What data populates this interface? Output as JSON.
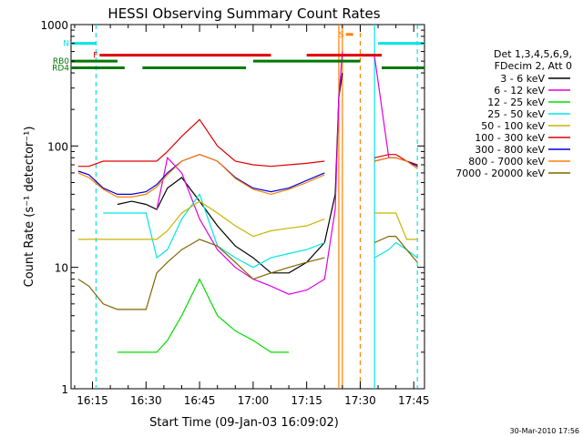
{
  "chart_data": {
    "type": "line",
    "title": "HESSI Observing Summary Count Rates",
    "xlabel": "Start Time (09-Jan-03 16:09:02)",
    "ylabel": "Count Rate (s⁻¹ detector⁻¹)",
    "y_scale": "log",
    "ylim": [
      1,
      1000
    ],
    "xlim": [
      "16:09",
      "17:48"
    ],
    "x_ticks": [
      "16:15",
      "16:30",
      "16:45",
      "17:00",
      "17:15",
      "17:30",
      "17:45"
    ],
    "y_ticks": [
      "1",
      "10",
      "100",
      "1000"
    ],
    "footer": "30-Mar-2010 17:56",
    "grid": false,
    "legend_header": [
      "Det 1,3,4,5,6,9,",
      "FDecim 2, Att 0"
    ],
    "legend_position": "right",
    "series": [
      {
        "name": "3 - 6 keV",
        "color": "#000000",
        "x": [
          "16:11",
          "16:14",
          "16:18",
          "16:22",
          "16:26",
          "16:30",
          "16:33",
          "16:36",
          "16:40",
          "16:45",
          "16:50",
          "16:55",
          "17:00",
          "17:05",
          "17:10",
          "17:15",
          "17:20",
          "17:23",
          "17:24",
          "17:25",
          "17:26",
          "17:27",
          "17:34",
          "17:38",
          "17:40",
          "17:43",
          "17:46"
        ],
        "y": [
          null,
          null,
          null,
          33,
          35,
          33,
          30,
          45,
          55,
          35,
          22,
          15,
          12,
          9,
          9,
          11,
          16,
          40,
          250,
          400,
          null,
          null,
          null,
          null,
          null,
          null,
          null
        ]
      },
      {
        "name": "6 - 12 keV",
        "color": "#e000e0",
        "x": [
          "16:11",
          "16:14",
          "16:18",
          "16:22",
          "16:26",
          "16:30",
          "16:33",
          "16:36",
          "16:40",
          "16:45",
          "16:50",
          "16:55",
          "17:00",
          "17:05",
          "17:10",
          "17:15",
          "17:20",
          "17:23",
          "17:24",
          "17:25",
          "17:26",
          "17:27",
          "17:34",
          "17:38",
          "17:40",
          "17:43",
          "17:46"
        ],
        "y": [
          null,
          null,
          null,
          null,
          null,
          null,
          30,
          80,
          60,
          25,
          14,
          10,
          8,
          7,
          6,
          6.5,
          8,
          30,
          250,
          600,
          null,
          null,
          550,
          80,
          null,
          null,
          null
        ]
      },
      {
        "name": "12 - 25 keV",
        "color": "#00dd00",
        "x": [
          "16:11",
          "16:14",
          "16:18",
          "16:22",
          "16:26",
          "16:30",
          "16:33",
          "16:36",
          "16:40",
          "16:45",
          "16:50",
          "16:55",
          "17:00",
          "17:05",
          "17:10",
          "17:15",
          "17:20",
          "17:23",
          "17:24",
          "17:25",
          "17:26",
          "17:27",
          "17:34",
          "17:38",
          "17:40",
          "17:43",
          "17:46"
        ],
        "y": [
          null,
          null,
          null,
          2,
          2,
          2,
          2,
          2.5,
          4,
          8,
          4,
          3,
          2.5,
          2,
          2,
          null,
          null,
          null,
          null,
          null,
          null,
          null,
          null,
          null,
          null,
          null,
          null
        ]
      },
      {
        "name": "25 - 50 keV",
        "color": "#00e5e5",
        "x": [
          "16:11",
          "16:14",
          "16:18",
          "16:22",
          "16:26",
          "16:30",
          "16:33",
          "16:36",
          "16:40",
          "16:45",
          "16:50",
          "16:55",
          "17:00",
          "17:05",
          "17:10",
          "17:15",
          "17:20",
          "17:23",
          "17:24",
          "17:25",
          "17:26",
          "17:27",
          "17:34",
          "17:38",
          "17:40",
          "17:43",
          "17:46"
        ],
        "y": [
          null,
          null,
          28,
          28,
          28,
          28,
          12,
          14,
          25,
          40,
          15,
          12,
          10,
          12,
          13,
          14,
          16,
          null,
          null,
          null,
          null,
          null,
          12,
          14,
          16,
          14,
          12
        ]
      },
      {
        "name": "50 - 100 keV",
        "color": "#c8b400",
        "x": [
          "16:11",
          "16:14",
          "16:18",
          "16:22",
          "16:26",
          "16:30",
          "16:33",
          "16:36",
          "16:40",
          "16:45",
          "16:50",
          "16:55",
          "17:00",
          "17:05",
          "17:10",
          "17:15",
          "17:20",
          "17:23",
          "17:24",
          "17:25",
          "17:26",
          "17:27",
          "17:34",
          "17:38",
          "17:40",
          "17:43",
          "17:46"
        ],
        "y": [
          17,
          17,
          17,
          17,
          17,
          17,
          17,
          20,
          28,
          35,
          28,
          22,
          18,
          20,
          21,
          22,
          25,
          null,
          null,
          null,
          null,
          null,
          28,
          28,
          28,
          17,
          17
        ]
      },
      {
        "name": "100 - 300 keV",
        "color": "#e00000",
        "x": [
          "16:11",
          "16:14",
          "16:18",
          "16:22",
          "16:26",
          "16:30",
          "16:33",
          "16:36",
          "16:40",
          "16:45",
          "16:50",
          "16:55",
          "17:00",
          "17:05",
          "17:10",
          "17:15",
          "17:20",
          "17:23",
          "17:24",
          "17:25",
          "17:26",
          "17:27",
          "17:34",
          "17:38",
          "17:40",
          "17:43",
          "17:46"
        ],
        "y": [
          68,
          68,
          75,
          75,
          75,
          75,
          75,
          90,
          120,
          165,
          100,
          75,
          70,
          68,
          70,
          72,
          75,
          null,
          null,
          null,
          null,
          null,
          80,
          85,
          85,
          75,
          70
        ]
      },
      {
        "name": "300 - 800 keV",
        "color": "#0000dd",
        "x": [
          "16:11",
          "16:14",
          "16:18",
          "16:22",
          "16:26",
          "16:30",
          "16:33",
          "16:36",
          "16:40",
          "16:45",
          "16:50",
          "16:55",
          "17:00",
          "17:05",
          "17:10",
          "17:15",
          "17:20",
          "17:23",
          "17:24",
          "17:25",
          "17:26",
          "17:27",
          "17:34",
          "17:38",
          "17:40",
          "17:43",
          "17:46"
        ],
        "y": [
          62,
          58,
          45,
          40,
          40,
          42,
          48,
          60,
          75,
          85,
          75,
          55,
          45,
          42,
          45,
          52,
          60,
          null,
          null,
          null,
          null,
          null,
          75,
          80,
          80,
          75,
          68
        ]
      },
      {
        "name": "800 - 7000 keV",
        "color": "#ff8000",
        "x": [
          "16:11",
          "16:14",
          "16:18",
          "16:22",
          "16:26",
          "16:30",
          "16:33",
          "16:36",
          "16:40",
          "16:45",
          "16:50",
          "16:55",
          "17:00",
          "17:05",
          "17:10",
          "17:15",
          "17:20",
          "17:23",
          "17:24",
          "17:25",
          "17:26",
          "17:27",
          "17:34",
          "17:38",
          "17:40",
          "17:43",
          "17:46"
        ],
        "y": [
          60,
          55,
          44,
          38,
          38,
          40,
          46,
          58,
          75,
          85,
          75,
          54,
          44,
          40,
          44,
          50,
          58,
          null,
          null,
          null,
          null,
          null,
          75,
          80,
          80,
          75,
          65
        ]
      },
      {
        "name": "7000 - 20000 keV",
        "color": "#806400",
        "x": [
          "16:11",
          "16:14",
          "16:18",
          "16:22",
          "16:26",
          "16:30",
          "16:33",
          "16:36",
          "16:40",
          "16:45",
          "16:50",
          "16:55",
          "17:00",
          "17:05",
          "17:10",
          "17:15",
          "17:20",
          "17:23",
          "17:24",
          "17:25",
          "17:26",
          "17:27",
          "17:34",
          "17:38",
          "17:40",
          "17:43",
          "17:46"
        ],
        "y": [
          8,
          7,
          5,
          4.5,
          4.5,
          4.5,
          9,
          11,
          14,
          17,
          15,
          11,
          8,
          9,
          10,
          11,
          12,
          null,
          null,
          null,
          null,
          null,
          16,
          18,
          18,
          14,
          11
        ]
      }
    ],
    "flag_bars": [
      {
        "label": "N",
        "color": "#00e5e5",
        "y_level": 700,
        "segments": [
          [
            "16:09",
            "16:16"
          ],
          [
            "17:35",
            "17:48"
          ]
        ]
      },
      {
        "label": "F",
        "color": "#e00000",
        "y_level": 560,
        "segments": [
          [
            "16:17",
            "17:05"
          ],
          [
            "17:15",
            "17:36"
          ]
        ]
      },
      {
        "label": "RB0",
        "color": "#007800",
        "y_level": 500,
        "segments": [
          [
            "16:09",
            "16:22"
          ],
          [
            "17:00",
            "17:30"
          ]
        ]
      },
      {
        "label": "RD4",
        "color": "#007800",
        "y_level": 440,
        "segments": [
          [
            "16:09",
            "16:24"
          ],
          [
            "16:29",
            "16:58"
          ],
          [
            "17:36",
            "17:48"
          ]
        ]
      },
      {
        "label": "S",
        "color": "#ff8000",
        "y_level": 830,
        "segments": [
          [
            "17:26",
            "17:28"
          ]
        ]
      }
    ],
    "vertical_markers": [
      {
        "time": "16:16",
        "color": "#00e5e5",
        "style": "dashed"
      },
      {
        "time": "17:34",
        "color": "#00e5e5",
        "style": "solid"
      },
      {
        "time": "17:46",
        "color": "#00e5e5",
        "style": "dashed"
      },
      {
        "time": "17:24",
        "color": "#ff8000",
        "style": "solid"
      },
      {
        "time": "17:25",
        "color": "#ff8000",
        "style": "solid"
      },
      {
        "time": "17:30",
        "color": "#ff8000",
        "style": "dashed"
      }
    ]
  }
}
